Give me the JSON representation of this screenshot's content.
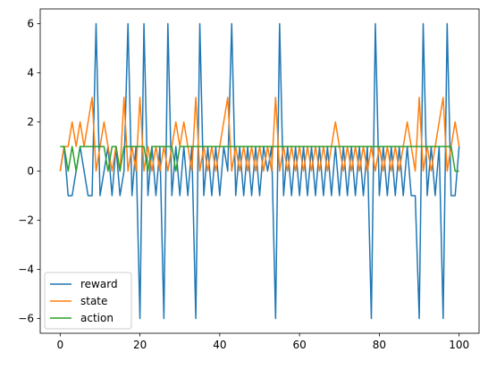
{
  "chart_data": {
    "type": "line",
    "xlim": [
      -5,
      105
    ],
    "ylim": [
      -6.6,
      6.6
    ],
    "x_ticks": [
      0,
      20,
      40,
      60,
      80,
      100
    ],
    "y_ticks": [
      -6,
      -4,
      -2,
      0,
      2,
      4,
      6
    ],
    "grid": false,
    "legend_position": "lower-left",
    "x": [
      0,
      1,
      2,
      3,
      4,
      5,
      6,
      7,
      8,
      9,
      10,
      11,
      12,
      13,
      14,
      15,
      16,
      17,
      18,
      19,
      20,
      21,
      22,
      23,
      24,
      25,
      26,
      27,
      28,
      29,
      30,
      31,
      32,
      33,
      34,
      35,
      36,
      37,
      38,
      39,
      40,
      41,
      42,
      43,
      44,
      45,
      46,
      47,
      48,
      49,
      50,
      51,
      52,
      53,
      54,
      55,
      56,
      57,
      58,
      59,
      60,
      61,
      62,
      63,
      64,
      65,
      66,
      67,
      68,
      69,
      70,
      71,
      72,
      73,
      74,
      75,
      76,
      77,
      78,
      79,
      80,
      81,
      82,
      83,
      84,
      85,
      86,
      87,
      88,
      89,
      90,
      91,
      92,
      93,
      94,
      95,
      96,
      97,
      98,
      99,
      100
    ],
    "series": [
      {
        "name": "reward",
        "color": "#1f77b4",
        "values": [
          0,
          1,
          -1,
          -1,
          0,
          1,
          0,
          -1,
          -1,
          6,
          -1,
          0,
          1,
          -1,
          1,
          -1,
          0,
          6,
          -1,
          1,
          -6,
          6,
          -1,
          1,
          -1,
          1,
          -6,
          6,
          -1,
          1,
          -1,
          1,
          -1,
          1,
          -6,
          6,
          -1,
          1,
          -1,
          1,
          -1,
          1,
          0,
          6,
          -1,
          1,
          -1,
          1,
          -1,
          1,
          -1,
          1,
          0,
          1,
          -6,
          6,
          -1,
          1,
          -1,
          1,
          -1,
          1,
          -1,
          1,
          -1,
          1,
          -1,
          1,
          -1,
          1,
          -1,
          1,
          -1,
          1,
          -1,
          1,
          -1,
          1,
          -6,
          6,
          -1,
          1,
          -1,
          1,
          -1,
          1,
          -1,
          1,
          -1,
          -1,
          -6,
          6,
          -1,
          1,
          -1,
          1,
          -6,
          6,
          -1,
          -1,
          1
        ]
      },
      {
        "name": "state",
        "color": "#ff7f0e",
        "values": [
          0,
          1,
          1,
          2,
          1,
          2,
          1,
          2,
          3,
          0,
          1,
          2,
          1,
          0,
          1,
          0,
          3,
          0,
          1,
          0,
          3,
          0,
          1,
          0,
          1,
          0,
          1,
          0,
          1,
          2,
          1,
          2,
          1,
          0,
          3,
          0,
          1,
          0,
          1,
          0,
          1,
          2,
          3,
          0,
          1,
          0,
          1,
          0,
          1,
          0,
          1,
          0,
          1,
          0,
          3,
          0,
          1,
          0,
          1,
          0,
          1,
          0,
          1,
          0,
          1,
          0,
          1,
          0,
          1,
          2,
          1,
          0,
          1,
          0,
          1,
          0,
          1,
          0,
          1,
          0,
          1,
          0,
          1,
          0,
          1,
          0,
          1,
          2,
          1,
          0,
          3,
          0,
          1,
          0,
          1,
          2,
          3,
          0,
          1,
          2,
          1
        ]
      },
      {
        "name": "action",
        "color": "#2ca02c",
        "values": [
          1,
          1,
          0,
          1,
          0,
          1,
          1,
          1,
          1,
          1,
          1,
          1,
          0,
          1,
          1,
          0,
          1,
          1,
          1,
          1,
          1,
          1,
          0,
          1,
          1,
          1,
          1,
          1,
          1,
          0,
          1,
          1,
          1,
          1,
          1,
          1,
          1,
          1,
          1,
          1,
          1,
          1,
          1,
          1,
          1,
          1,
          1,
          1,
          1,
          1,
          1,
          1,
          1,
          1,
          1,
          1,
          1,
          1,
          1,
          1,
          1,
          1,
          1,
          1,
          1,
          1,
          1,
          1,
          1,
          1,
          1,
          1,
          1,
          1,
          1,
          1,
          1,
          1,
          1,
          1,
          1,
          1,
          1,
          1,
          1,
          1,
          1,
          1,
          1,
          1,
          1,
          1,
          1,
          1,
          1,
          1,
          1,
          1,
          1,
          0,
          0
        ]
      }
    ],
    "legend": [
      {
        "label": "reward",
        "color": "#1f77b4"
      },
      {
        "label": "state",
        "color": "#ff7f0e"
      },
      {
        "label": "action",
        "color": "#2ca02c"
      }
    ]
  }
}
